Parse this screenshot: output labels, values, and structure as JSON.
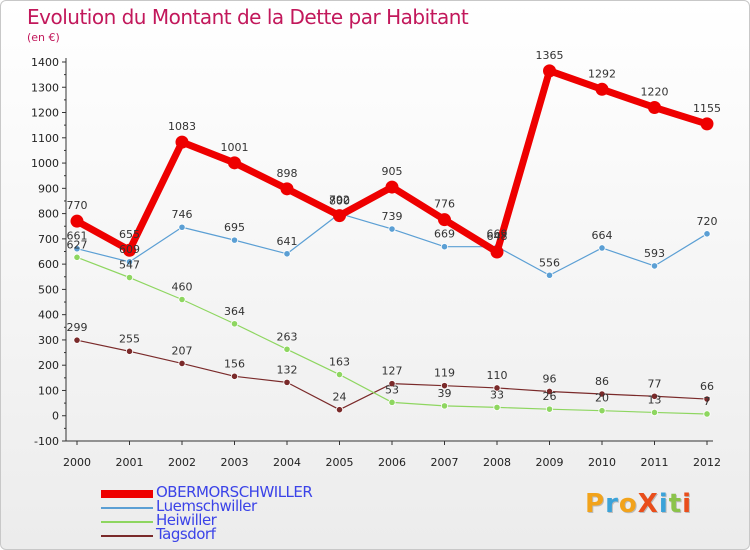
{
  "title": "Evolution du Montant de la Dette par Habitant",
  "subtitle": "(en €)",
  "logo": {
    "text": "ProXiti",
    "colors": [
      "#f2a31b",
      "#3ba3d9",
      "#f2a31b",
      "#e94e1b",
      "#3ba3d9",
      "#8bc34a",
      "#e94e1b"
    ]
  },
  "chart_data": {
    "type": "line",
    "title": "Evolution du Montant de la Dette par Habitant",
    "ylabel": "(en €)",
    "xlabel": "",
    "x": [
      "2000",
      "2001",
      "2002",
      "2003",
      "2004",
      "2005",
      "2006",
      "2007",
      "2008",
      "2009",
      "2010",
      "2011",
      "2012"
    ],
    "ylim": [
      -100,
      1400
    ],
    "yticks": [
      "-100",
      "0",
      "100",
      "200",
      "300",
      "400",
      "500",
      "600",
      "700",
      "800",
      "900",
      "1000",
      "1100",
      "1200",
      "1300",
      "1400"
    ],
    "grid": false,
    "legend_position": "bottom-left",
    "series": [
      {
        "name": "OBERMORSCHWILLER",
        "color": "#ee0000",
        "emphasis": true,
        "values": [
          770,
          655,
          1083,
          1001,
          898,
          792,
          905,
          776,
          648,
          1365,
          1292,
          1220,
          1155
        ],
        "labels": [
          "770",
          "655",
          "1083",
          "1001",
          "898",
          "792",
          "905",
          "776",
          "648",
          "1365",
          "1292",
          "1220",
          "1155"
        ]
      },
      {
        "name": "Luemschwiller",
        "color": "#5b9fd4",
        "emphasis": false,
        "values": [
          661,
          609,
          746,
          695,
          641,
          800,
          739,
          669,
          669,
          556,
          664,
          593,
          720
        ],
        "labels": [
          "661",
          "609",
          "746",
          "695",
          "641",
          "800",
          "739",
          "669",
          "669",
          "556",
          "664",
          "593",
          "720"
        ]
      },
      {
        "name": "Heiwiller",
        "color": "#8ed660",
        "emphasis": false,
        "values": [
          627,
          547,
          460,
          364,
          263,
          163,
          53,
          39,
          33,
          26,
          20,
          13,
          7
        ],
        "labels": [
          "627",
          "547",
          "460",
          "364",
          "263",
          "163",
          "53",
          "39",
          "33",
          "26",
          "20",
          "13",
          "7"
        ]
      },
      {
        "name": "Tagsdorf",
        "color": "#7a2a2a",
        "emphasis": false,
        "values": [
          299,
          255,
          207,
          156,
          132,
          24,
          127,
          119,
          110,
          96,
          86,
          77,
          66
        ],
        "labels": [
          "299",
          "255",
          "207",
          "156",
          "132",
          "24",
          "127",
          "119",
          "110",
          "96",
          "86",
          "77",
          "66"
        ]
      }
    ]
  }
}
